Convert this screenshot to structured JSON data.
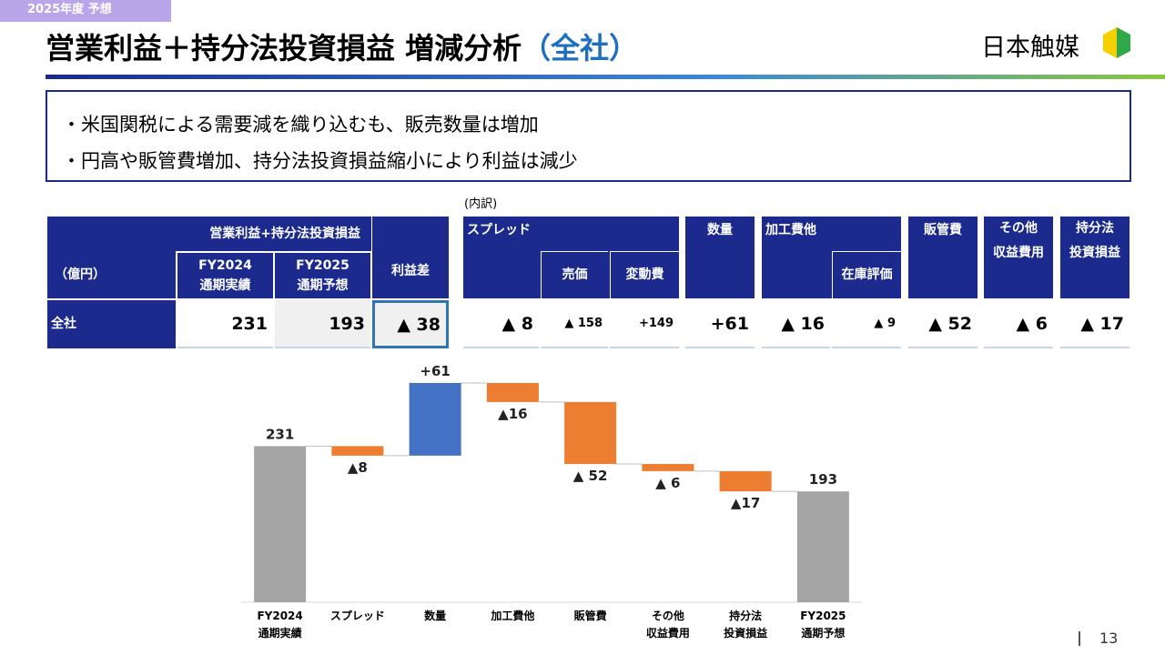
{
  "header": {
    "tag": "2025年度 予想",
    "title": "営業利益＋持分法投資損益 増減分析",
    "title_suffix": "（全社）",
    "logo": "日本触媒"
  },
  "bullets": [
    "・米国関税による需要減を織り込むも、販売数量は増加",
    "・円高や販管費増加、持分法投資損益縮小により利益は減少"
  ],
  "note": "(内訳)",
  "table": {
    "unit": "（億円）",
    "group": "営業利益+持分法投資損益",
    "col1": "FY2024\n通期実績",
    "col2": "FY2025\n通期予想",
    "diff": "利益差",
    "row": "全社",
    "v1": "231",
    "v2": "193",
    "vd": "▲ 38",
    "spread": "スプレッド",
    "spread_value": "▲ 8",
    "price": "売価",
    "price_value": "▲ 158",
    "variable": "変動費",
    "variable_value": "+149",
    "volume": "数量",
    "volume_value": "+61",
    "processing": "加工費他",
    "processing_value": "▲ 16",
    "inventory": "在庫評価",
    "inventory_value": "▲ 9",
    "sga": "販管費",
    "sga_value": "▲ 52",
    "other": "その他\n収益費用",
    "other_value": "▲ 6",
    "equity": "持分法\n投資損益",
    "equity_value": "▲ 17"
  },
  "chart_data": {
    "type": "waterfall",
    "categories": [
      "FY2024\n通期実績",
      "スプレッド",
      "数量",
      "加工費他",
      "販管費",
      "その他\n収益費用",
      "持分法\n投資損益",
      "FY2025\n通期予想"
    ],
    "values": [
      231,
      -8,
      61,
      -16,
      -52,
      -6,
      -17,
      193
    ],
    "value_labels": [
      "231",
      "▲8",
      "+61",
      "▲16",
      "▲ 52",
      "▲ 6",
      "▲17",
      "193"
    ],
    "measure": [
      "total",
      "relative",
      "relative",
      "relative",
      "relative",
      "relative",
      "relative",
      "total"
    ],
    "colors": {
      "total": "#a5a5a5",
      "increase": "#4472c4",
      "decrease": "#ed7d31"
    },
    "ylim": [
      100,
      300
    ]
  },
  "page_number": "13"
}
